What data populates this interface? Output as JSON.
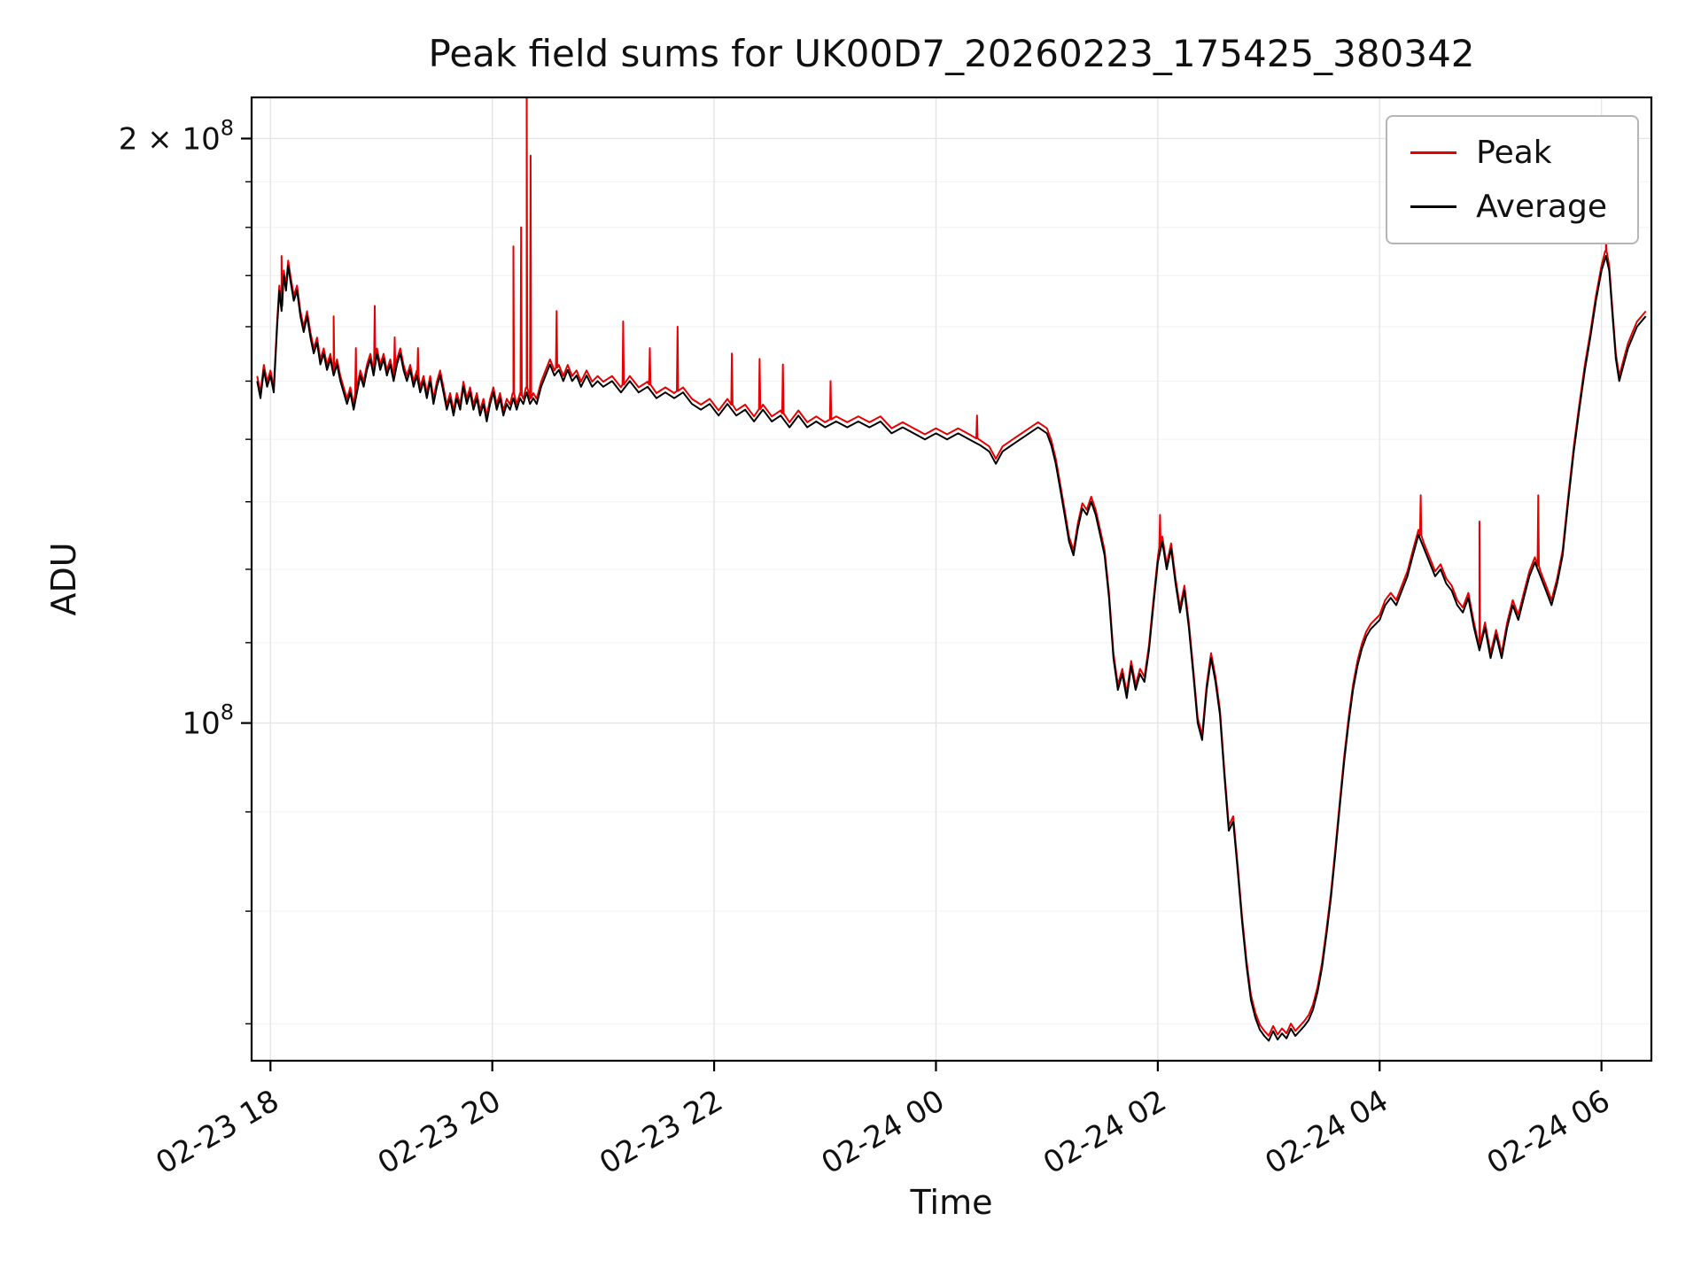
{
  "chart_data": {
    "type": "line",
    "title": "Peak field sums for UK00D7_20260223_175425_380342",
    "xlabel": "Time",
    "ylabel": "ADU",
    "y_scale": "log",
    "value_unit": "x10^8 ADU",
    "ylim_1e8": [
      0.67,
      2.1
    ],
    "xlim_hours_after_0223_1700": [
      0.83,
      13.45
    ],
    "grid": true,
    "x_ticks": [
      {
        "t": 1,
        "label": "02-23 18"
      },
      {
        "t": 3,
        "label": "02-23 20"
      },
      {
        "t": 5,
        "label": "02-23 22"
      },
      {
        "t": 7,
        "label": "02-24 00"
      },
      {
        "t": 9,
        "label": "02-24 02"
      },
      {
        "t": 11,
        "label": "02-24 04"
      },
      {
        "t": 13,
        "label": "02-24 06"
      }
    ],
    "y_ticks": [
      {
        "v": 2.0,
        "coef": "2 × 10",
        "exp": "8"
      },
      {
        "v": 1.0,
        "coef": "10",
        "exp": "8"
      }
    ],
    "y_minor_ticks": [
      0.7,
      0.8,
      0.9,
      1.1,
      1.2,
      1.3,
      1.4,
      1.5,
      1.6,
      1.7,
      1.8,
      1.9
    ],
    "legend": {
      "position": "upper right",
      "entries": [
        {
          "label": "Peak",
          "color": "#e60000"
        },
        {
          "label": "Average",
          "color": "#000000"
        }
      ]
    },
    "series": {
      "average": {
        "name": "Average",
        "color": "#000000",
        "points": [
          [
            0.88,
            1.5
          ],
          [
            0.91,
            1.47
          ],
          [
            0.94,
            1.52
          ],
          [
            0.97,
            1.49
          ],
          [
            1.0,
            1.51
          ],
          [
            1.03,
            1.48
          ],
          [
            1.06,
            1.6
          ],
          [
            1.08,
            1.67
          ],
          [
            1.1,
            1.63
          ],
          [
            1.12,
            1.7
          ],
          [
            1.14,
            1.67
          ],
          [
            1.16,
            1.72
          ],
          [
            1.18,
            1.69
          ],
          [
            1.21,
            1.65
          ],
          [
            1.24,
            1.67
          ],
          [
            1.27,
            1.62
          ],
          [
            1.3,
            1.59
          ],
          [
            1.33,
            1.62
          ],
          [
            1.36,
            1.58
          ],
          [
            1.39,
            1.55
          ],
          [
            1.42,
            1.57
          ],
          [
            1.45,
            1.53
          ],
          [
            1.48,
            1.55
          ],
          [
            1.51,
            1.52
          ],
          [
            1.54,
            1.54
          ],
          [
            1.57,
            1.51
          ],
          [
            1.6,
            1.53
          ],
          [
            1.63,
            1.5
          ],
          [
            1.66,
            1.48
          ],
          [
            1.69,
            1.46
          ],
          [
            1.72,
            1.48
          ],
          [
            1.75,
            1.45
          ],
          [
            1.78,
            1.48
          ],
          [
            1.81,
            1.51
          ],
          [
            1.84,
            1.49
          ],
          [
            1.87,
            1.52
          ],
          [
            1.9,
            1.54
          ],
          [
            1.93,
            1.51
          ],
          [
            1.96,
            1.55
          ],
          [
            1.99,
            1.52
          ],
          [
            2.02,
            1.54
          ],
          [
            2.05,
            1.51
          ],
          [
            2.08,
            1.53
          ],
          [
            2.11,
            1.5
          ],
          [
            2.14,
            1.53
          ],
          [
            2.17,
            1.55
          ],
          [
            2.2,
            1.52
          ],
          [
            2.23,
            1.5
          ],
          [
            2.26,
            1.52
          ],
          [
            2.29,
            1.49
          ],
          [
            2.32,
            1.51
          ],
          [
            2.35,
            1.48
          ],
          [
            2.38,
            1.5
          ],
          [
            2.41,
            1.47
          ],
          [
            2.44,
            1.5
          ],
          [
            2.47,
            1.46
          ],
          [
            2.5,
            1.49
          ],
          [
            2.53,
            1.51
          ],
          [
            2.56,
            1.48
          ],
          [
            2.59,
            1.45
          ],
          [
            2.62,
            1.47
          ],
          [
            2.65,
            1.44
          ],
          [
            2.68,
            1.47
          ],
          [
            2.71,
            1.45
          ],
          [
            2.74,
            1.49
          ],
          [
            2.77,
            1.46
          ],
          [
            2.8,
            1.48
          ],
          [
            2.83,
            1.45
          ],
          [
            2.86,
            1.47
          ],
          [
            2.89,
            1.44
          ],
          [
            2.92,
            1.46
          ],
          [
            2.95,
            1.43
          ],
          [
            2.98,
            1.46
          ],
          [
            3.01,
            1.48
          ],
          [
            3.04,
            1.45
          ],
          [
            3.07,
            1.47
          ],
          [
            3.1,
            1.44
          ],
          [
            3.13,
            1.46
          ],
          [
            3.16,
            1.45
          ],
          [
            3.19,
            1.47
          ],
          [
            3.22,
            1.45
          ],
          [
            3.25,
            1.47
          ],
          [
            3.28,
            1.46
          ],
          [
            3.31,
            1.48
          ],
          [
            3.34,
            1.46
          ],
          [
            3.37,
            1.47
          ],
          [
            3.4,
            1.46
          ],
          [
            3.44,
            1.49
          ],
          [
            3.48,
            1.51
          ],
          [
            3.52,
            1.53
          ],
          [
            3.56,
            1.51
          ],
          [
            3.6,
            1.52
          ],
          [
            3.64,
            1.5
          ],
          [
            3.68,
            1.52
          ],
          [
            3.72,
            1.5
          ],
          [
            3.76,
            1.51
          ],
          [
            3.8,
            1.49
          ],
          [
            3.85,
            1.51
          ],
          [
            3.9,
            1.49
          ],
          [
            3.95,
            1.5
          ],
          [
            4.0,
            1.49
          ],
          [
            4.08,
            1.5
          ],
          [
            4.16,
            1.48
          ],
          [
            4.24,
            1.5
          ],
          [
            4.32,
            1.48
          ],
          [
            4.4,
            1.49
          ],
          [
            4.48,
            1.47
          ],
          [
            4.56,
            1.48
          ],
          [
            4.64,
            1.47
          ],
          [
            4.72,
            1.48
          ],
          [
            4.8,
            1.46
          ],
          [
            4.88,
            1.45
          ],
          [
            4.96,
            1.46
          ],
          [
            5.04,
            1.44
          ],
          [
            5.12,
            1.46
          ],
          [
            5.2,
            1.44
          ],
          [
            5.28,
            1.45
          ],
          [
            5.36,
            1.43
          ],
          [
            5.44,
            1.45
          ],
          [
            5.52,
            1.43
          ],
          [
            5.6,
            1.44
          ],
          [
            5.68,
            1.42
          ],
          [
            5.76,
            1.44
          ],
          [
            5.84,
            1.42
          ],
          [
            5.92,
            1.43
          ],
          [
            6.0,
            1.42
          ],
          [
            6.1,
            1.43
          ],
          [
            6.2,
            1.42
          ],
          [
            6.3,
            1.43
          ],
          [
            6.4,
            1.42
          ],
          [
            6.5,
            1.43
          ],
          [
            6.6,
            1.41
          ],
          [
            6.7,
            1.42
          ],
          [
            6.8,
            1.41
          ],
          [
            6.9,
            1.4
          ],
          [
            7.0,
            1.41
          ],
          [
            7.1,
            1.4
          ],
          [
            7.2,
            1.41
          ],
          [
            7.3,
            1.4
          ],
          [
            7.4,
            1.39
          ],
          [
            7.48,
            1.38
          ],
          [
            7.54,
            1.36
          ],
          [
            7.6,
            1.38
          ],
          [
            7.68,
            1.39
          ],
          [
            7.76,
            1.4
          ],
          [
            7.84,
            1.41
          ],
          [
            7.92,
            1.42
          ],
          [
            8.0,
            1.41
          ],
          [
            8.04,
            1.39
          ],
          [
            8.08,
            1.36
          ],
          [
            8.12,
            1.32
          ],
          [
            8.16,
            1.28
          ],
          [
            8.2,
            1.24
          ],
          [
            8.24,
            1.22
          ],
          [
            8.28,
            1.26
          ],
          [
            8.32,
            1.29
          ],
          [
            8.36,
            1.28
          ],
          [
            8.4,
            1.3
          ],
          [
            8.44,
            1.28
          ],
          [
            8.48,
            1.25
          ],
          [
            8.52,
            1.22
          ],
          [
            8.56,
            1.16
          ],
          [
            8.6,
            1.08
          ],
          [
            8.64,
            1.04
          ],
          [
            8.68,
            1.06
          ],
          [
            8.72,
            1.03
          ],
          [
            8.76,
            1.07
          ],
          [
            8.8,
            1.04
          ],
          [
            8.84,
            1.06
          ],
          [
            8.88,
            1.05
          ],
          [
            8.92,
            1.09
          ],
          [
            8.96,
            1.15
          ],
          [
            9.0,
            1.21
          ],
          [
            9.04,
            1.24
          ],
          [
            9.08,
            1.2
          ],
          [
            9.12,
            1.23
          ],
          [
            9.16,
            1.18
          ],
          [
            9.2,
            1.14
          ],
          [
            9.24,
            1.17
          ],
          [
            9.28,
            1.12
          ],
          [
            9.32,
            1.06
          ],
          [
            9.36,
            1.0
          ],
          [
            9.4,
            0.98
          ],
          [
            9.44,
            1.04
          ],
          [
            9.48,
            1.08
          ],
          [
            9.52,
            1.05
          ],
          [
            9.56,
            1.01
          ],
          [
            9.6,
            0.94
          ],
          [
            9.64,
            0.88
          ],
          [
            9.68,
            0.89
          ],
          [
            9.72,
            0.84
          ],
          [
            9.76,
            0.79
          ],
          [
            9.8,
            0.75
          ],
          [
            9.84,
            0.72
          ],
          [
            9.88,
            0.705
          ],
          [
            9.92,
            0.695
          ],
          [
            9.96,
            0.69
          ],
          [
            10.0,
            0.686
          ],
          [
            10.04,
            0.694
          ],
          [
            10.08,
            0.687
          ],
          [
            10.12,
            0.692
          ],
          [
            10.16,
            0.688
          ],
          [
            10.2,
            0.696
          ],
          [
            10.24,
            0.69
          ],
          [
            10.28,
            0.694
          ],
          [
            10.32,
            0.698
          ],
          [
            10.36,
            0.703
          ],
          [
            10.4,
            0.712
          ],
          [
            10.44,
            0.727
          ],
          [
            10.48,
            0.748
          ],
          [
            10.52,
            0.778
          ],
          [
            10.56,
            0.812
          ],
          [
            10.6,
            0.856
          ],
          [
            10.64,
            0.905
          ],
          [
            10.68,
            0.955
          ],
          [
            10.72,
            1.0
          ],
          [
            10.76,
            1.04
          ],
          [
            10.8,
            1.07
          ],
          [
            10.84,
            1.092
          ],
          [
            10.88,
            1.108
          ],
          [
            10.92,
            1.118
          ],
          [
            10.96,
            1.124
          ],
          [
            11.0,
            1.13
          ],
          [
            11.05,
            1.15
          ],
          [
            11.1,
            1.16
          ],
          [
            11.15,
            1.15
          ],
          [
            11.2,
            1.17
          ],
          [
            11.25,
            1.19
          ],
          [
            11.3,
            1.22
          ],
          [
            11.35,
            1.25
          ],
          [
            11.4,
            1.23
          ],
          [
            11.45,
            1.21
          ],
          [
            11.5,
            1.19
          ],
          [
            11.55,
            1.2
          ],
          [
            11.6,
            1.18
          ],
          [
            11.65,
            1.17
          ],
          [
            11.7,
            1.15
          ],
          [
            11.75,
            1.14
          ],
          [
            11.8,
            1.16
          ],
          [
            11.85,
            1.12
          ],
          [
            11.9,
            1.09
          ],
          [
            11.95,
            1.12
          ],
          [
            12.0,
            1.08
          ],
          [
            12.05,
            1.11
          ],
          [
            12.1,
            1.08
          ],
          [
            12.15,
            1.12
          ],
          [
            12.2,
            1.15
          ],
          [
            12.25,
            1.13
          ],
          [
            12.3,
            1.16
          ],
          [
            12.35,
            1.19
          ],
          [
            12.4,
            1.21
          ],
          [
            12.45,
            1.19
          ],
          [
            12.5,
            1.17
          ],
          [
            12.55,
            1.15
          ],
          [
            12.6,
            1.18
          ],
          [
            12.65,
            1.22
          ],
          [
            12.7,
            1.3
          ],
          [
            12.75,
            1.38
          ],
          [
            12.8,
            1.45
          ],
          [
            12.85,
            1.52
          ],
          [
            12.9,
            1.58
          ],
          [
            12.95,
            1.65
          ],
          [
            13.0,
            1.71
          ],
          [
            13.04,
            1.74
          ],
          [
            13.07,
            1.71
          ],
          [
            13.1,
            1.62
          ],
          [
            13.13,
            1.54
          ],
          [
            13.16,
            1.5
          ],
          [
            13.2,
            1.53
          ],
          [
            13.24,
            1.56
          ],
          [
            13.28,
            1.58
          ],
          [
            13.32,
            1.6
          ],
          [
            13.36,
            1.61
          ],
          [
            13.4,
            1.62
          ]
        ]
      },
      "peak": {
        "name": "Peak",
        "color": "#e60000",
        "base": "average",
        "base_scale": 1.006,
        "spikes": [
          [
            1.1,
            1.74
          ],
          [
            1.57,
            1.62
          ],
          [
            1.77,
            1.56
          ],
          [
            1.94,
            1.64
          ],
          [
            2.12,
            1.58
          ],
          [
            2.33,
            1.56
          ],
          [
            3.19,
            1.76
          ],
          [
            3.26,
            1.8
          ],
          [
            3.31,
            2.16
          ],
          [
            3.345,
            1.96
          ],
          [
            3.58,
            1.63
          ],
          [
            4.18,
            1.61
          ],
          [
            4.42,
            1.56
          ],
          [
            4.67,
            1.6
          ],
          [
            5.16,
            1.55
          ],
          [
            5.41,
            1.54
          ],
          [
            5.62,
            1.53
          ],
          [
            6.05,
            1.5
          ],
          [
            7.37,
            1.44
          ],
          [
            9.02,
            1.28
          ],
          [
            11.37,
            1.31
          ],
          [
            11.9,
            1.27
          ],
          [
            12.43,
            1.31
          ],
          [
            13.04,
            1.78
          ]
        ]
      }
    }
  }
}
